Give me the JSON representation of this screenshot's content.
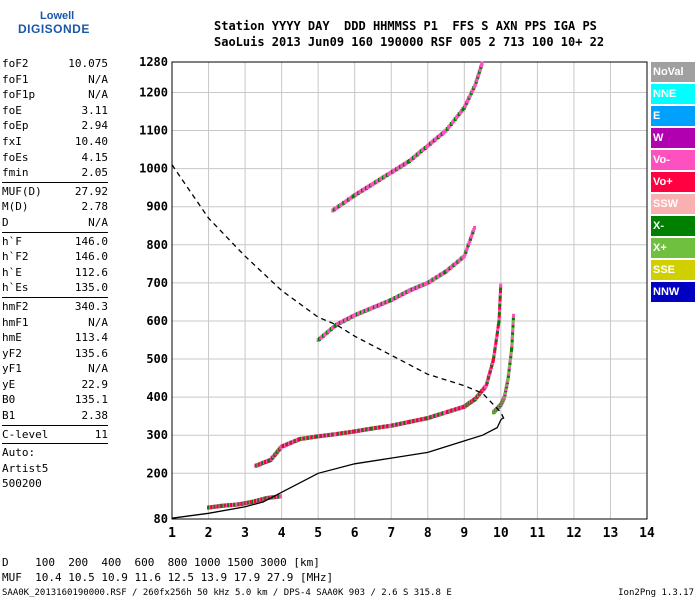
{
  "logo": {
    "line1": "Lowell",
    "line2": "DIGISONDE"
  },
  "header": {
    "line1": "Station YYYY DAY  DDD HHMMSS P1  FFS S AXN PPS IGA PS",
    "line2": "SaoLuis 2013 Jun09 160 190000 RSF 005 2 713 100 10+ 22"
  },
  "params": [
    {
      "label": "foF2",
      "value": "10.075"
    },
    {
      "label": "foF1",
      "value": "N/A"
    },
    {
      "label": "foF1p",
      "value": "N/A"
    },
    {
      "label": "foE",
      "value": "3.11"
    },
    {
      "label": "foEp",
      "value": "2.94"
    },
    {
      "label": "fxI",
      "value": "10.40"
    },
    {
      "label": "foEs",
      "value": "4.15"
    },
    {
      "label": "fmin",
      "value": "2.05",
      "sep": true
    },
    {
      "label": "MUF(D)",
      "value": "27.92"
    },
    {
      "label": "M(D)",
      "value": "2.78"
    },
    {
      "label": "D",
      "value": "N/A",
      "sep": true
    },
    {
      "label": "h`F",
      "value": "146.0"
    },
    {
      "label": "h`F2",
      "value": "146.0"
    },
    {
      "label": "h`E",
      "value": "112.6"
    },
    {
      "label": "h`Es",
      "value": "135.0",
      "sep": true
    },
    {
      "label": "hmF2",
      "value": "340.3"
    },
    {
      "label": "hmF1",
      "value": "N/A"
    },
    {
      "label": "hmE",
      "value": "113.4"
    },
    {
      "label": "yF2",
      "value": "135.6"
    },
    {
      "label": "yF1",
      "value": "N/A"
    },
    {
      "label": "yE",
      "value": "22.9"
    },
    {
      "label": "B0",
      "value": "135.1"
    },
    {
      "label": "B1",
      "value": "2.38",
      "sep": true
    },
    {
      "label": "C-level",
      "value": "11",
      "sep": true
    },
    {
      "label": "Auto:",
      "value": ""
    },
    {
      "label": "Artist5",
      "value": ""
    },
    {
      "label": "500200",
      "value": ""
    }
  ],
  "legend": [
    {
      "label": "NoVal",
      "color": "#a0a0a0"
    },
    {
      "label": "NNE",
      "color": "#00ffff"
    },
    {
      "label": "E",
      "color": "#00a0ff"
    },
    {
      "label": "W",
      "color": "#b000b0"
    },
    {
      "label": "Vo-",
      "color": "#ff50c0"
    },
    {
      "label": "Vo+",
      "color": "#ff0040"
    },
    {
      "label": "SSW",
      "color": "#f8b0b0"
    },
    {
      "label": "X-",
      "color": "#008000"
    },
    {
      "label": "X+",
      "color": "#70c040"
    },
    {
      "label": "SSE",
      "color": "#d0d000"
    },
    {
      "label": "NNW",
      "color": "#0000c0"
    }
  ],
  "bottom": {
    "line1": "D    100  200  400  600  800 1000 1500 3000 [km]",
    "line2": "MUF  10.4 10.5 10.9 11.6 12.5 13.9 17.9 27.9 [MHz]"
  },
  "footer": "SAA0K_2013160190000.RSF / 260fx256h 50 kHz 5.0 km / DPS-4 SAA0K 903 / 2.6 S 315.8 E",
  "version": "Ion2Png 1.3.17",
  "chart_data": {
    "type": "scatter",
    "xlim": [
      1,
      14
    ],
    "ylim": [
      80,
      1280
    ],
    "xticks": [
      1,
      2,
      3,
      4,
      5,
      6,
      7,
      8,
      9,
      10,
      11,
      12,
      13,
      14
    ],
    "yticks": [
      80,
      200,
      300,
      400,
      500,
      600,
      700,
      800,
      900,
      1000,
      1100,
      1200,
      1280
    ],
    "grid": true,
    "series": [
      {
        "name": "F2 trace (O)",
        "color": "#ff0040",
        "x": [
          3.3,
          3.7,
          4.0,
          4.5,
          5.0,
          5.5,
          6.0,
          6.5,
          7.0,
          7.5,
          8.0,
          8.5,
          9.0,
          9.3,
          9.6,
          9.8,
          9.95,
          10.0
        ],
        "y": [
          220,
          235,
          270,
          290,
          297,
          303,
          310,
          318,
          325,
          335,
          345,
          360,
          375,
          395,
          430,
          500,
          600,
          700
        ]
      },
      {
        "name": "F2 trace (X)",
        "color": "#70c040",
        "x": [
          9.8,
          10.0,
          10.1,
          10.2,
          10.3,
          10.35
        ],
        "y": [
          360,
          380,
          400,
          450,
          530,
          620
        ]
      },
      {
        "name": "2F2 trace",
        "color": "#ff50c0",
        "x": [
          5.0,
          5.5,
          6.0,
          6.5,
          7.0,
          7.5,
          8.0,
          8.5,
          9.0,
          9.3
        ],
        "y": [
          550,
          590,
          615,
          635,
          655,
          680,
          700,
          730,
          770,
          850
        ]
      },
      {
        "name": "3F2 trace",
        "color": "#ff50c0",
        "x": [
          5.4,
          6.0,
          6.5,
          7.0,
          7.5,
          8.0,
          8.5,
          9.0,
          9.3,
          9.5
        ],
        "y": [
          890,
          930,
          960,
          990,
          1020,
          1060,
          1100,
          1160,
          1220,
          1280
        ]
      },
      {
        "name": "E/Es trace",
        "color": "#ff0040",
        "x": [
          2.0,
          2.4,
          2.8,
          3.2,
          3.6,
          4.0
        ],
        "y": [
          110,
          115,
          118,
          125,
          135,
          140
        ]
      },
      {
        "name": "True height profile",
        "color": "#000000",
        "x": [
          1.0,
          2.0,
          3.0,
          3.5,
          4.0,
          5.0,
          6.0,
          7.0,
          8.0,
          9.0,
          9.5,
          9.9,
          10.0,
          10.05
        ],
        "y": [
          82,
          95,
          112,
          125,
          150,
          200,
          225,
          240,
          255,
          285,
          300,
          320,
          340,
          345
        ]
      },
      {
        "name": "Model profile (dashed)",
        "color": "#000000",
        "x": [
          1.0,
          2.0,
          3.0,
          4.0,
          5.0,
          5.5,
          6.0,
          7.0,
          8.0,
          9.0,
          9.5,
          10.0,
          10.1
        ],
        "y": [
          1010,
          870,
          770,
          680,
          610,
          590,
          560,
          510,
          460,
          430,
          410,
          360,
          340
        ]
      }
    ]
  }
}
